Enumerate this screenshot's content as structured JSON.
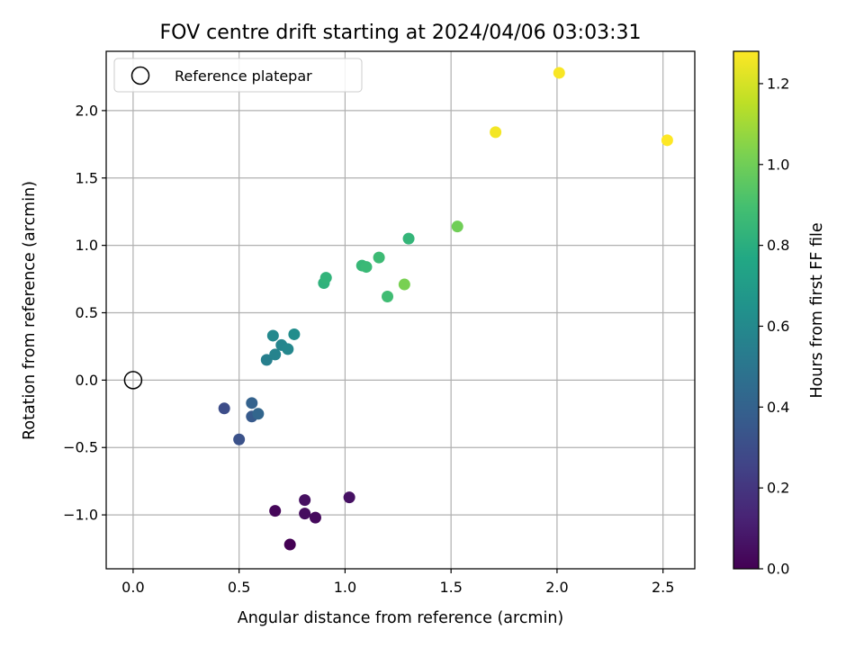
{
  "chart_data": {
    "type": "scatter",
    "title": "FOV centre drift starting at 2024/04/06 03:03:31",
    "xlabel": "Angular distance from reference (arcmin)",
    "ylabel": "Rotation from reference (arcmin)",
    "xlim": [
      -0.127,
      2.65
    ],
    "ylim": [
      -1.4,
      2.44
    ],
    "xticks": [
      0.0,
      0.5,
      1.0,
      1.5,
      2.0,
      2.5
    ],
    "xtick_labels": [
      "0.0",
      "0.5",
      "1.0",
      "1.5",
      "2.0",
      "2.5"
    ],
    "yticks": [
      -1.0,
      -0.5,
      0.0,
      0.5,
      1.0,
      1.5,
      2.0
    ],
    "ytick_labels": [
      "−1.0",
      "−0.5",
      "0.0",
      "0.5",
      "1.0",
      "1.5",
      "2.0"
    ],
    "grid": true,
    "legend": {
      "position": "top-left",
      "label": "Reference platepar"
    },
    "reference_point": {
      "x": 0.0,
      "y": 0.0
    },
    "colorbar": {
      "label": "Hours from first FF file",
      "colormap": "viridis",
      "range": [
        0.0,
        1.28
      ],
      "ticks": [
        0.0,
        0.2,
        0.4,
        0.6,
        0.8,
        1.0,
        1.2
      ],
      "tick_labels": [
        "0.0",
        "0.2",
        "0.4",
        "0.6",
        "0.8",
        "1.0",
        "1.2"
      ]
    },
    "points": [
      {
        "x": 0.74,
        "y": -1.22,
        "c": 0.0
      },
      {
        "x": 0.67,
        "y": -0.97,
        "c": 0.02
      },
      {
        "x": 0.86,
        "y": -1.02,
        "c": 0.03
      },
      {
        "x": 0.81,
        "y": -0.99,
        "c": 0.04
      },
      {
        "x": 0.81,
        "y": -0.89,
        "c": 0.05
      },
      {
        "x": 1.02,
        "y": -0.87,
        "c": 0.06
      },
      {
        "x": 0.43,
        "y": -0.21,
        "c": 0.3
      },
      {
        "x": 0.5,
        "y": -0.44,
        "c": 0.32
      },
      {
        "x": 0.56,
        "y": -0.27,
        "c": 0.36
      },
      {
        "x": 0.56,
        "y": -0.17,
        "c": 0.4
      },
      {
        "x": 0.59,
        "y": -0.25,
        "c": 0.42
      },
      {
        "x": 0.63,
        "y": 0.15,
        "c": 0.55
      },
      {
        "x": 0.67,
        "y": 0.19,
        "c": 0.57
      },
      {
        "x": 0.7,
        "y": 0.26,
        "c": 0.58
      },
      {
        "x": 0.73,
        "y": 0.23,
        "c": 0.59
      },
      {
        "x": 0.66,
        "y": 0.33,
        "c": 0.6
      },
      {
        "x": 0.76,
        "y": 0.34,
        "c": 0.62
      },
      {
        "x": 0.9,
        "y": 0.72,
        "c": 0.82
      },
      {
        "x": 0.91,
        "y": 0.76,
        "c": 0.83
      },
      {
        "x": 1.08,
        "y": 0.85,
        "c": 0.85
      },
      {
        "x": 1.1,
        "y": 0.84,
        "c": 0.86
      },
      {
        "x": 1.16,
        "y": 0.91,
        "c": 0.87
      },
      {
        "x": 1.2,
        "y": 0.62,
        "c": 0.88
      },
      {
        "x": 1.3,
        "y": 1.05,
        "c": 0.84
      },
      {
        "x": 1.28,
        "y": 0.71,
        "c": 1.02
      },
      {
        "x": 1.53,
        "y": 1.14,
        "c": 1.0
      },
      {
        "x": 1.71,
        "y": 1.84,
        "c": 1.26
      },
      {
        "x": 2.01,
        "y": 2.28,
        "c": 1.27
      },
      {
        "x": 2.52,
        "y": 1.78,
        "c": 1.28
      }
    ]
  }
}
